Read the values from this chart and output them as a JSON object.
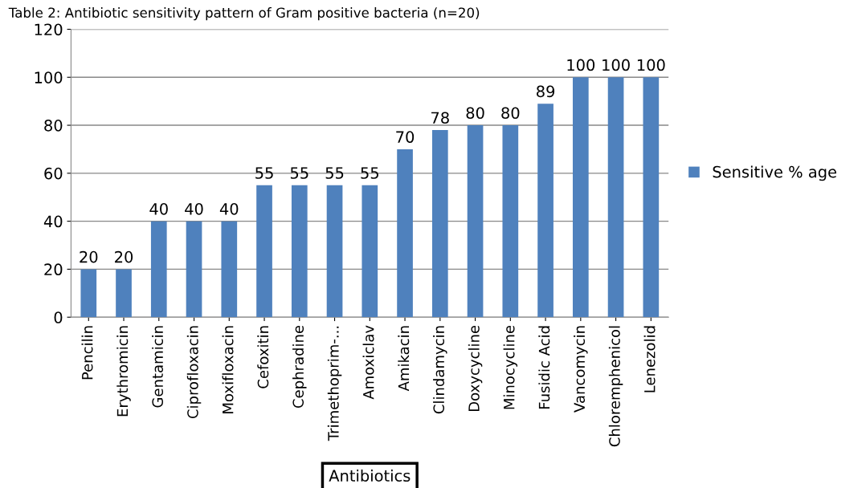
{
  "chart_data": {
    "type": "bar",
    "title": "Table 2: Antibiotic sensitivity pattern of Gram positive bacteria (n=20)",
    "categories": [
      "Pencilin",
      "Erythromicin",
      "Gentamicin",
      "Ciprofloxacin",
      "Moxifloxacin",
      "Cefoxitin",
      "Cephradine",
      "Trimethoprim-...",
      "Amoxiclav",
      "Amikacin",
      "Clindamycin",
      "Doxycycline",
      "Minocycline",
      "Fusidic Acid",
      "Vancomycin",
      "Chloremphenicol",
      "Lenezolid"
    ],
    "series": [
      {
        "name": "Sensitive % age",
        "color": "#4f81bd",
        "values": [
          20,
          20,
          40,
          40,
          40,
          55,
          55,
          55,
          55,
          70,
          78,
          80,
          80,
          89,
          100,
          100,
          100
        ]
      }
    ],
    "xlabel": "Antibiotics",
    "ylim": [
      0,
      120
    ],
    "yticks": [
      0,
      20,
      40,
      60,
      80,
      100,
      120
    ],
    "grid": "y",
    "legend": "right",
    "data_labels": true
  }
}
